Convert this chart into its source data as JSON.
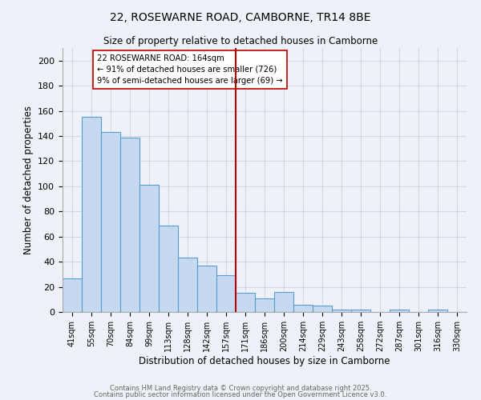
{
  "title": "22, ROSEWARNE ROAD, CAMBORNE, TR14 8BE",
  "subtitle": "Size of property relative to detached houses in Camborne",
  "xlabel": "Distribution of detached houses by size in Camborne",
  "ylabel": "Number of detached properties",
  "categories": [
    "41sqm",
    "55sqm",
    "70sqm",
    "84sqm",
    "99sqm",
    "113sqm",
    "128sqm",
    "142sqm",
    "157sqm",
    "171sqm",
    "186sqm",
    "200sqm",
    "214sqm",
    "229sqm",
    "243sqm",
    "258sqm",
    "272sqm",
    "287sqm",
    "301sqm",
    "316sqm",
    "330sqm"
  ],
  "values": [
    27,
    155,
    143,
    139,
    101,
    69,
    43,
    37,
    29,
    15,
    11,
    16,
    6,
    5,
    2,
    2,
    0,
    2,
    0,
    2,
    0
  ],
  "bar_color": "#c6d9f0",
  "bar_edge_color": "#5b9bd5",
  "vline_color": "#c00000",
  "vline_bar_index": 8,
  "annotation_line1": "22 ROSEWARNE ROAD: 164sqm",
  "annotation_line2": "← 91% of detached houses are smaller (726)",
  "annotation_line3": "9% of semi-detached houses are larger (69) →",
  "annotation_box_edge_color": "#c00000",
  "ylim": [
    0,
    210
  ],
  "yticks": [
    0,
    20,
    40,
    60,
    80,
    100,
    120,
    140,
    160,
    180,
    200
  ],
  "grid_color": "#d0d8e8",
  "background_color": "#eef2f8",
  "footer1": "Contains HM Land Registry data © Crown copyright and database right 2025.",
  "footer2": "Contains public sector information licensed under the Open Government Licence v3.0."
}
